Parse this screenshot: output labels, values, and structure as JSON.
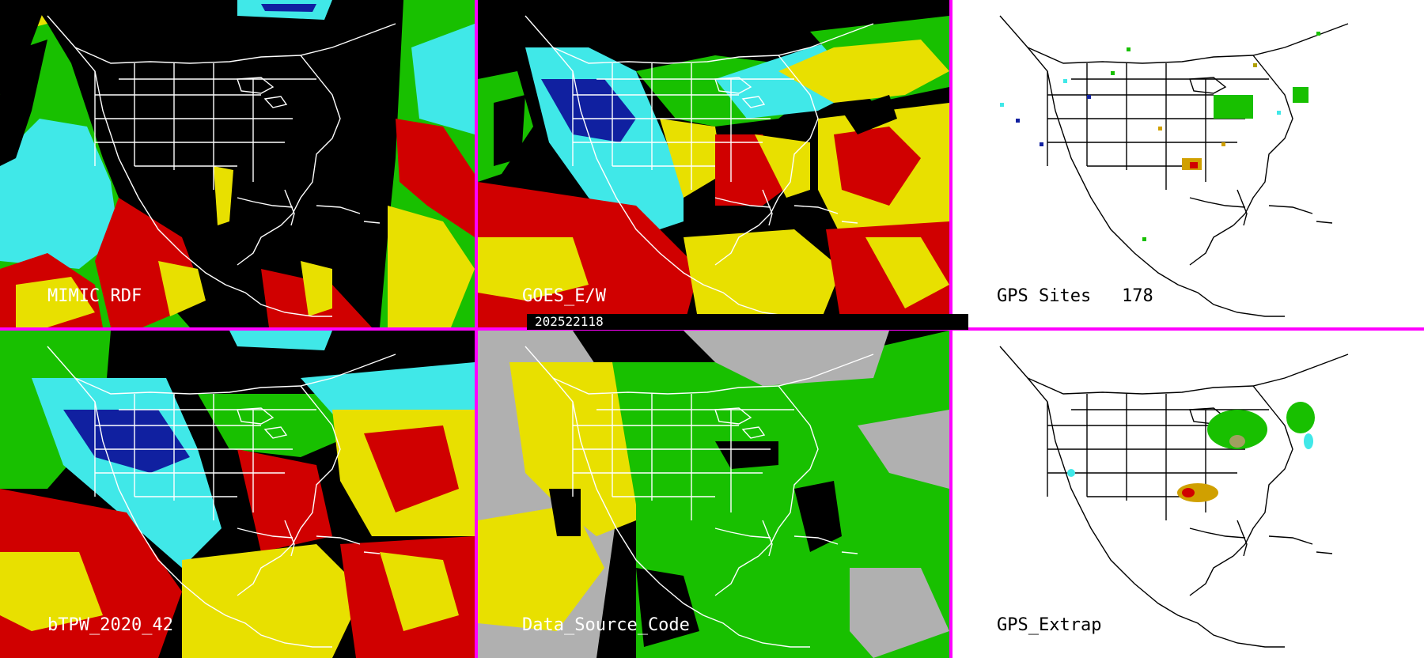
{
  "timestamp": "202522118",
  "panels": {
    "mimic": {
      "label": "MIMIC RDF"
    },
    "goes": {
      "label": "GOES_E/W"
    },
    "gps_sites": {
      "label": "GPS Sites",
      "count": "178"
    },
    "btpw": {
      "label": "bTPW_2020_42"
    },
    "source": {
      "label": "Data_Source_Code"
    },
    "gps_extrap": {
      "label": "GPS_Extrap"
    }
  },
  "colors": {
    "divider": "#ff00ff",
    "moist_red": "#d00000",
    "yellow": "#e8e000",
    "green": "#18c000",
    "cyan": "#40e8e8",
    "blue": "#1020a0",
    "gray": "#b0b0b0"
  }
}
